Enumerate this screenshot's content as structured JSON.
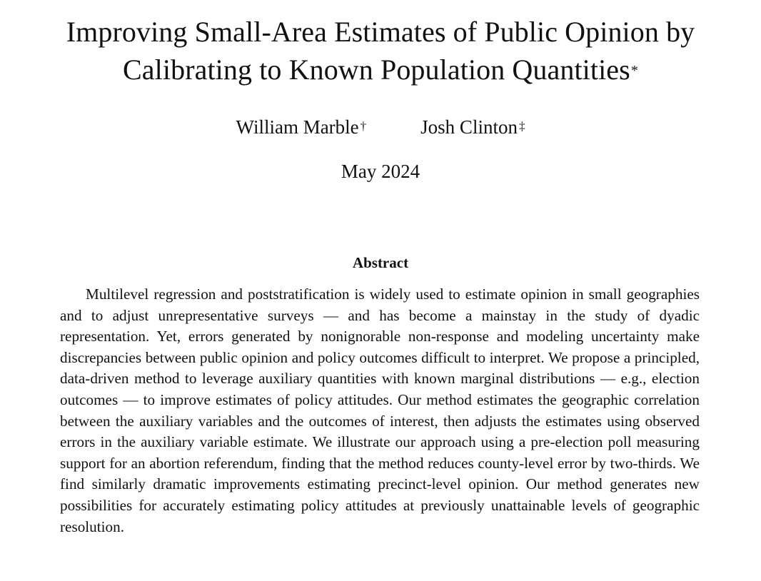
{
  "paper": {
    "title_line1": "Improving Small-Area Estimates of Public Opinion by",
    "title_line2": "Calibrating to Known Population Quantities",
    "title_mark": "*",
    "authors": [
      {
        "name": "William Marble",
        "mark": "†"
      },
      {
        "name": "Josh Clinton",
        "mark": "‡"
      }
    ],
    "date": "May 2024",
    "abstract_heading": "Abstract",
    "abstract_text": "Multilevel regression and poststratification is widely used to estimate opinion in small geographies and to adjust unrepresentative surveys — and has become a mainstay in the study of dyadic representation. Yet, errors generated by nonignorable non-response and modeling uncertainty make discrepancies between public opinion and policy outcomes difficult to interpret. We propose a principled, data-driven method to leverage auxiliary quantities with known marginal distributions — e.g., election outcomes — to improve estimates of policy attitudes. Our method estimates the geographic correlation between the auxiliary variables and the outcomes of interest, then adjusts the estimates using observed errors in the auxiliary variable estimate. We illustrate our approach using a pre-election poll measuring support for an abortion referendum, finding that the method reduces county-level error by two-thirds. We find similarly dramatic improvements estimating precinct-level opinion. Our method generates new possibilities for accurately estimating policy attitudes at previously unattainable levels of geographic resolution."
  }
}
